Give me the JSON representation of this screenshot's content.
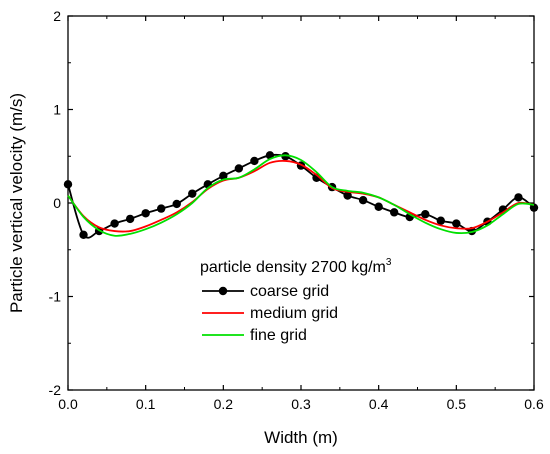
{
  "chart_data": {
    "type": "line",
    "xlabel": "Width (m)",
    "ylabel": "Particle vertical velocity (m/s)",
    "xlim": [
      0.0,
      0.6
    ],
    "ylim": [
      -2,
      2
    ],
    "x_ticks": [
      "0.0",
      "0.1",
      "0.2",
      "0.3",
      "0.4",
      "0.5",
      "0.6"
    ],
    "y_ticks": [
      "-2",
      "-1",
      "0",
      "1",
      "2"
    ],
    "grid": false,
    "legend_position": "bottom-center",
    "legend_title": {
      "prefix": "particle density 2700 kg/m",
      "superscript": "3"
    },
    "series": [
      {
        "name": "coarse grid",
        "color": "#000000",
        "marker": "circle",
        "x": [
          0.0,
          0.02,
          0.04,
          0.06,
          0.08,
          0.1,
          0.12,
          0.14,
          0.16,
          0.18,
          0.2,
          0.22,
          0.24,
          0.26,
          0.28,
          0.3,
          0.32,
          0.34,
          0.36,
          0.38,
          0.4,
          0.42,
          0.44,
          0.46,
          0.48,
          0.5,
          0.52,
          0.54,
          0.56,
          0.58,
          0.6
        ],
        "values": [
          0.2,
          -0.34,
          -0.3,
          -0.22,
          -0.17,
          -0.11,
          -0.06,
          -0.01,
          0.1,
          0.2,
          0.29,
          0.37,
          0.45,
          0.51,
          0.5,
          0.4,
          0.27,
          0.17,
          0.08,
          0.03,
          -0.04,
          -0.1,
          -0.15,
          -0.12,
          -0.19,
          -0.22,
          -0.3,
          -0.2,
          -0.07,
          0.06,
          -0.05
        ]
      },
      {
        "name": "medium grid",
        "color": "#ff0000",
        "marker": "none",
        "x": [
          0.0,
          0.02,
          0.04,
          0.06,
          0.08,
          0.1,
          0.12,
          0.14,
          0.16,
          0.18,
          0.2,
          0.22,
          0.24,
          0.26,
          0.28,
          0.3,
          0.32,
          0.34,
          0.36,
          0.38,
          0.4,
          0.42,
          0.44,
          0.46,
          0.48,
          0.5,
          0.52,
          0.54,
          0.56,
          0.58,
          0.6
        ],
        "values": [
          0.08,
          -0.14,
          -0.26,
          -0.3,
          -0.3,
          -0.25,
          -0.18,
          -0.1,
          0.01,
          0.15,
          0.24,
          0.27,
          0.34,
          0.43,
          0.45,
          0.41,
          0.3,
          0.16,
          0.12,
          0.1,
          0.06,
          -0.02,
          -0.1,
          -0.18,
          -0.24,
          -0.27,
          -0.27,
          -0.2,
          -0.1,
          0.0,
          -0.02
        ]
      },
      {
        "name": "fine grid",
        "color": "#00e000",
        "marker": "none",
        "x": [
          0.0,
          0.02,
          0.04,
          0.06,
          0.08,
          0.1,
          0.12,
          0.14,
          0.16,
          0.18,
          0.2,
          0.22,
          0.24,
          0.26,
          0.28,
          0.3,
          0.32,
          0.34,
          0.36,
          0.38,
          0.4,
          0.42,
          0.44,
          0.46,
          0.48,
          0.5,
          0.52,
          0.54,
          0.56,
          0.58,
          0.6
        ],
        "values": [
          0.08,
          -0.15,
          -0.29,
          -0.35,
          -0.33,
          -0.28,
          -0.21,
          -0.12,
          0.0,
          0.16,
          0.25,
          0.27,
          0.36,
          0.47,
          0.51,
          0.46,
          0.33,
          0.17,
          0.13,
          0.11,
          0.06,
          -0.02,
          -0.12,
          -0.21,
          -0.28,
          -0.32,
          -0.31,
          -0.24,
          -0.12,
          -0.01,
          -0.02
        ]
      }
    ]
  }
}
